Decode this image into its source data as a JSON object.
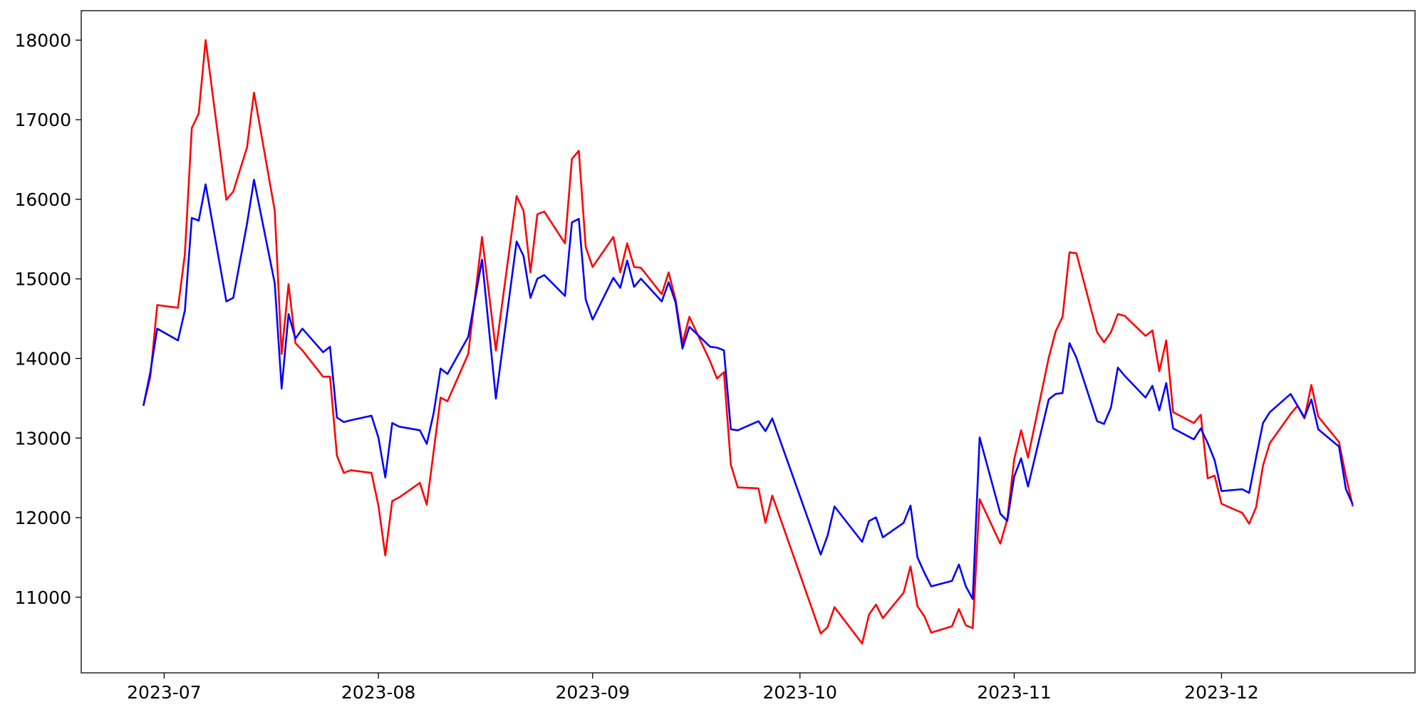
{
  "chart_data": {
    "type": "line",
    "x": [
      "2023-06-28",
      "2023-06-29",
      "2023-06-30",
      "2023-07-03",
      "2023-07-04",
      "2023-07-05",
      "2023-07-06",
      "2023-07-07",
      "2023-07-10",
      "2023-07-11",
      "2023-07-13",
      "2023-07-14",
      "2023-07-17",
      "2023-07-18",
      "2023-07-19",
      "2023-07-20",
      "2023-07-21",
      "2023-07-24",
      "2023-07-25",
      "2023-07-26",
      "2023-07-27",
      "2023-07-28",
      "2023-07-31",
      "2023-08-01",
      "2023-08-02",
      "2023-08-03",
      "2023-08-04",
      "2023-08-07",
      "2023-08-08",
      "2023-08-09",
      "2023-08-10",
      "2023-08-11",
      "2023-08-14",
      "2023-08-16",
      "2023-08-18",
      "2023-08-21",
      "2023-08-22",
      "2023-08-23",
      "2023-08-24",
      "2023-08-25",
      "2023-08-28",
      "2023-08-29",
      "2023-08-30",
      "2023-08-31",
      "2023-09-01",
      "2023-09-04",
      "2023-09-05",
      "2023-09-06",
      "2023-09-07",
      "2023-09-08",
      "2023-09-11",
      "2023-09-12",
      "2023-09-13",
      "2023-09-14",
      "2023-09-15",
      "2023-09-18",
      "2023-09-19",
      "2023-09-20",
      "2023-09-21",
      "2023-09-22",
      "2023-09-25",
      "2023-09-26",
      "2023-09-27",
      "2023-10-04",
      "2023-10-05",
      "2023-10-06",
      "2023-10-10",
      "2023-10-11",
      "2023-10-12",
      "2023-10-13",
      "2023-10-16",
      "2023-10-17",
      "2023-10-18",
      "2023-10-19",
      "2023-10-20",
      "2023-10-23",
      "2023-10-24",
      "2023-10-25",
      "2023-10-26",
      "2023-10-27",
      "2023-10-30",
      "2023-10-31",
      "2023-11-01",
      "2023-11-02",
      "2023-11-03",
      "2023-11-06",
      "2023-11-07",
      "2023-11-08",
      "2023-11-09",
      "2023-11-10",
      "2023-11-13",
      "2023-11-14",
      "2023-11-15",
      "2023-11-16",
      "2023-11-17",
      "2023-11-20",
      "2023-11-21",
      "2023-11-22",
      "2023-11-23",
      "2023-11-24",
      "2023-11-27",
      "2023-11-28",
      "2023-11-29",
      "2023-11-30",
      "2023-12-01",
      "2023-12-04",
      "2023-12-05",
      "2023-12-06",
      "2023-12-07",
      "2023-12-08",
      "2023-12-11",
      "2023-12-12",
      "2023-12-13",
      "2023-12-14",
      "2023-12-15",
      "2023-12-18",
      "2023-12-19",
      "2023-12-20"
    ],
    "series": [
      {
        "color": "#ff0000",
        "values": [
          13406,
          13771,
          14671,
          14637,
          15310,
          16895,
          17078,
          18000,
          15994,
          16097,
          16656,
          17340,
          15857,
          14056,
          14934,
          14193,
          14102,
          13771,
          13771,
          12779,
          12562,
          12596,
          12562,
          12152,
          11525,
          12209,
          12254,
          12437,
          12163,
          12836,
          13508,
          13463,
          14056,
          15527,
          14101,
          16040,
          15857,
          15082,
          15812,
          15846,
          15447,
          16507,
          16610,
          15401,
          15150,
          15527,
          15082,
          15447,
          15150,
          15139,
          14808,
          15082,
          14740,
          14193,
          14523,
          13965,
          13748,
          13828,
          12665,
          12380,
          12368,
          11935,
          12277,
          10544,
          10624,
          10875,
          10418,
          10783,
          10908,
          10738,
          11057,
          11388,
          10886,
          10761,
          10555,
          10635,
          10852,
          10647,
          10612,
          12231,
          11673,
          11981,
          12733,
          13098,
          12756,
          14010,
          14341,
          14523,
          15333,
          15322,
          14330,
          14204,
          14330,
          14558,
          14535,
          14284,
          14352,
          13839,
          14227,
          13326,
          13189,
          13292,
          12494,
          12528,
          12174,
          12060,
          11924,
          12129,
          12653,
          12938,
          13303,
          13406,
          13246,
          13668,
          13269,
          12950,
          12517,
          12140
        ]
      },
      {
        "color": "#0000ff",
        "values": [
          13406,
          13828,
          14375,
          14227,
          14603,
          15766,
          15732,
          16188,
          14717,
          14762,
          15698,
          16245,
          14945,
          13623,
          14558,
          14250,
          14375,
          14079,
          14147,
          13258,
          13201,
          13224,
          13281,
          13007,
          12505,
          13189,
          13144,
          13098,
          12927,
          13315,
          13873,
          13805,
          14273,
          15242,
          13497,
          15470,
          15287,
          14762,
          15002,
          15048,
          14786,
          15709,
          15755,
          14740,
          14489,
          15014,
          14888,
          15230,
          14900,
          15002,
          14717,
          14957,
          14706,
          14124,
          14398,
          14147,
          14136,
          14102,
          13110,
          13098,
          13212,
          13087,
          13246,
          11536,
          11775,
          12140,
          11696,
          11958,
          12003,
          11753,
          11935,
          12152,
          11502,
          11308,
          11137,
          11205,
          11411,
          11137,
          10977,
          13007,
          12049,
          11958,
          12517,
          12745,
          12391,
          13486,
          13554,
          13566,
          14193,
          14011,
          13212,
          13178,
          13383,
          13885,
          13782,
          13509,
          13657,
          13349,
          13691,
          13121,
          12984,
          13121,
          12938,
          12722,
          12334,
          12357,
          12311,
          12756,
          13189,
          13326,
          13554,
          13406,
          13258,
          13486,
          13110,
          12893,
          12357,
          12163
        ]
      }
    ],
    "xlim": [
      "2023-06-19",
      "2023-12-29"
    ],
    "xticks": [
      {
        "value": "2023-07-01",
        "label": "2023-07"
      },
      {
        "value": "2023-08-01",
        "label": "2023-08"
      },
      {
        "value": "2023-09-01",
        "label": "2023-09"
      },
      {
        "value": "2023-10-01",
        "label": "2023-10"
      },
      {
        "value": "2023-11-01",
        "label": "2023-11"
      },
      {
        "value": "2023-12-01",
        "label": "2023-12"
      }
    ],
    "ylim": [
      10050,
      18370
    ],
    "yticks": [
      11000,
      12000,
      13000,
      14000,
      15000,
      16000,
      17000,
      18000
    ]
  }
}
